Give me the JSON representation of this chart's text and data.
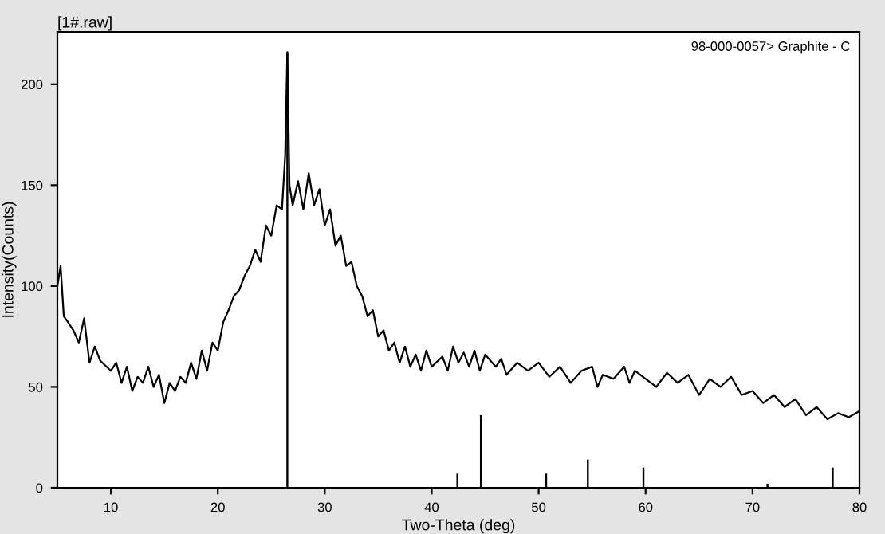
{
  "chart_data": {
    "type": "line",
    "title": "[1#.raw]",
    "xlabel": "Two-Theta (deg)",
    "ylabel": "Intensity(Counts)",
    "xlim": [
      5,
      80
    ],
    "xticks": [
      10,
      20,
      30,
      40,
      50,
      60,
      70,
      80
    ],
    "ylim": [
      0,
      226
    ],
    "yticks": [
      0,
      50,
      100,
      150,
      200
    ],
    "grid": false,
    "legend": "top right",
    "series": [
      {
        "color": "#000000",
        "x": [
          5,
          5.3,
          5.6,
          6,
          6.5,
          7,
          7.5,
          8,
          8.5,
          9,
          10,
          10.5,
          11,
          11.5,
          12,
          12.5,
          13,
          13.5,
          14,
          14.5,
          15,
          15.5,
          16,
          16.5,
          17,
          17.5,
          18,
          18.5,
          19,
          19.5,
          20,
          20.5,
          21,
          21.5,
          22,
          22.5,
          23,
          23.5,
          24,
          24.5,
          25,
          25.5,
          26,
          26.3,
          26.5,
          26.7,
          27,
          27.5,
          28,
          28.5,
          29,
          29.5,
          30,
          30.5,
          31,
          31.5,
          32,
          32.5,
          33,
          33.5,
          34,
          34.5,
          35,
          35.5,
          36,
          36.5,
          37,
          37.5,
          38,
          38.5,
          39,
          39.5,
          40,
          41,
          41.5,
          42,
          42.5,
          43,
          43.5,
          44,
          44.5,
          45,
          46,
          46.5,
          47,
          48,
          49,
          50,
          51,
          52,
          53,
          54,
          55,
          55.5,
          56,
          57,
          58,
          58.5,
          59,
          60,
          61,
          62,
          63,
          64,
          65,
          66,
          67,
          68,
          69,
          70,
          71,
          72,
          73,
          74,
          75,
          76,
          77,
          78,
          79,
          80
        ],
        "values": [
          100,
          110,
          85,
          82,
          78,
          72,
          84,
          62,
          70,
          63,
          58,
          62,
          52,
          60,
          48,
          55,
          52,
          60,
          50,
          56,
          42,
          52,
          48,
          55,
          52,
          62,
          54,
          68,
          58,
          72,
          68,
          82,
          88,
          95,
          98,
          105,
          110,
          118,
          112,
          130,
          125,
          140,
          138,
          165,
          216,
          150,
          140,
          152,
          138,
          156,
          140,
          148,
          130,
          138,
          120,
          125,
          110,
          112,
          100,
          95,
          85,
          88,
          75,
          78,
          68,
          72,
          62,
          70,
          60,
          66,
          58,
          68,
          60,
          65,
          58,
          70,
          62,
          67,
          60,
          68,
          58,
          66,
          60,
          64,
          56,
          62,
          58,
          62,
          55,
          60,
          52,
          58,
          60,
          50,
          56,
          54,
          60,
          52,
          58,
          54,
          50,
          57,
          52,
          56,
          46,
          54,
          50,
          55,
          46,
          48,
          42,
          46,
          40,
          44,
          36,
          40,
          34,
          37,
          35,
          38
        ]
      },
      {
        "type": "bar",
        "name": "98-000-0057> Graphite - C",
        "color": "#000000",
        "x": [
          26.5,
          42.4,
          44.6,
          50.7,
          54.6,
          59.8,
          71.4,
          77.5
        ],
        "values": [
          216,
          7,
          36,
          7,
          14,
          10,
          2,
          10
        ]
      }
    ]
  }
}
